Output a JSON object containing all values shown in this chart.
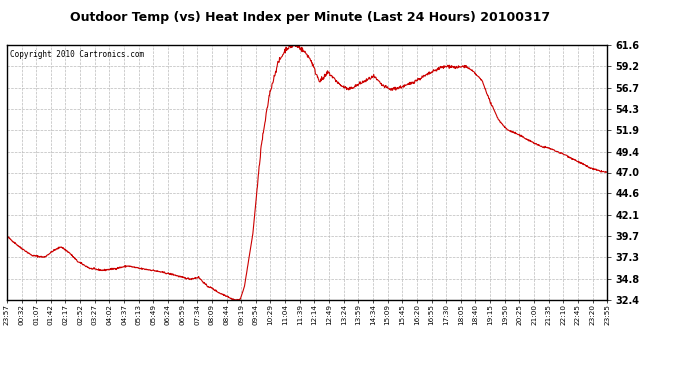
{
  "title": "Outdoor Temp (vs) Heat Index per Minute (Last 24 Hours) 20100317",
  "copyright": "Copyright 2010 Cartronics.com",
  "line_color": "#cc0000",
  "bg_color": "#ffffff",
  "plot_bg_color": "#ffffff",
  "grid_color": "#bbbbbb",
  "ylim": [
    32.4,
    61.6
  ],
  "yticks": [
    32.4,
    34.8,
    37.3,
    39.7,
    42.1,
    44.6,
    47.0,
    49.4,
    51.9,
    54.3,
    56.7,
    59.2,
    61.6
  ],
  "xtick_labels": [
    "23:57",
    "00:32",
    "01:07",
    "01:42",
    "02:17",
    "02:52",
    "03:27",
    "04:02",
    "04:37",
    "05:13",
    "05:49",
    "06:24",
    "06:59",
    "07:34",
    "08:09",
    "08:44",
    "09:19",
    "09:54",
    "10:29",
    "11:04",
    "11:39",
    "12:14",
    "12:49",
    "13:24",
    "13:59",
    "14:34",
    "15:09",
    "15:45",
    "16:20",
    "16:55",
    "17:30",
    "18:05",
    "18:40",
    "19:15",
    "19:50",
    "20:25",
    "21:00",
    "21:35",
    "22:10",
    "22:45",
    "23:20",
    "23:55"
  ],
  "n_points": 1441,
  "key_times": [
    0,
    30,
    60,
    90,
    110,
    130,
    150,
    170,
    200,
    230,
    260,
    290,
    320,
    350,
    380,
    400,
    420,
    440,
    460,
    470,
    480,
    490,
    500,
    510,
    520,
    530,
    540,
    550,
    560,
    570,
    590,
    610,
    630,
    650,
    670,
    680,
    690,
    700,
    710,
    720,
    730,
    740,
    750,
    760,
    770,
    780,
    800,
    820,
    840,
    860,
    880,
    900,
    920,
    940,
    960,
    980,
    1000,
    1020,
    1040,
    1060,
    1080,
    1100,
    1120,
    1140,
    1160,
    1180,
    1200,
    1220,
    1240,
    1260,
    1280,
    1300,
    1320,
    1340,
    1360,
    1380,
    1400,
    1420,
    1440
  ],
  "key_values": [
    39.7,
    38.5,
    37.5,
    37.3,
    38.0,
    38.5,
    37.8,
    36.8,
    36.0,
    35.8,
    36.0,
    36.3,
    36.0,
    35.8,
    35.5,
    35.3,
    35.0,
    34.8,
    35.0,
    34.5,
    34.0,
    33.8,
    33.5,
    33.2,
    33.0,
    32.8,
    32.5,
    32.4,
    32.5,
    34.0,
    40.0,
    50.0,
    56.0,
    59.5,
    61.2,
    61.4,
    61.6,
    61.4,
    61.0,
    60.5,
    59.8,
    58.5,
    57.5,
    57.8,
    58.5,
    58.0,
    57.0,
    56.5,
    57.0,
    57.5,
    58.0,
    57.0,
    56.5,
    56.7,
    57.0,
    57.5,
    58.0,
    58.5,
    59.0,
    59.2,
    59.0,
    59.2,
    58.5,
    57.5,
    55.0,
    53.0,
    51.9,
    51.5,
    51.0,
    50.5,
    50.0,
    49.8,
    49.4,
    49.0,
    48.5,
    48.0,
    47.5,
    47.2,
    47.0
  ]
}
